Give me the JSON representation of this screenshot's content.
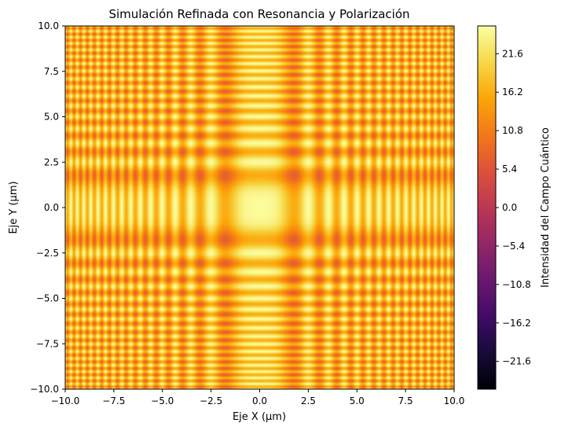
{
  "chart_data": {
    "type": "heatmap",
    "title": "Simulación Refinada con Resonancia y Polarización",
    "xlabel": "Eje X (μm)",
    "ylabel": "Eje Y (μm)",
    "xlim": [
      -10,
      10
    ],
    "ylim": [
      -10,
      10
    ],
    "x_ticks": [
      -10.0,
      -7.5,
      -5.0,
      -2.5,
      0.0,
      2.5,
      5.0,
      7.5,
      10.0
    ],
    "x_tick_labels": [
      "−10.0",
      "−7.5",
      "−5.0",
      "−2.5",
      "0.0",
      "2.5",
      "5.0",
      "7.5",
      "10.0"
    ],
    "y_ticks": [
      10.0,
      7.5,
      5.0,
      2.5,
      0.0,
      -2.5,
      -5.0,
      -7.5,
      -10.0
    ],
    "y_tick_labels": [
      "10.0",
      "7.5",
      "5.0",
      "2.5",
      "0.0",
      "−2.5",
      "−5.0",
      "−7.5",
      "−10.0"
    ],
    "colorbar": {
      "label": "Intensidad del Campo Cuántico",
      "colormap": "inferno",
      "range": [
        -25.5,
        25.5
      ],
      "ticks": [
        21.6,
        16.2,
        10.8,
        5.4,
        0.0,
        -5.4,
        -10.8,
        -16.2,
        -21.6
      ],
      "tick_labels": [
        "21.6",
        "16.2",
        "10.8",
        "5.4",
        "0.0",
        "−5.4",
        "−10.8",
        "−16.2",
        "−21.6"
      ]
    },
    "field_value_range_shown": [
      7,
      25
    ],
    "grid": false
  }
}
